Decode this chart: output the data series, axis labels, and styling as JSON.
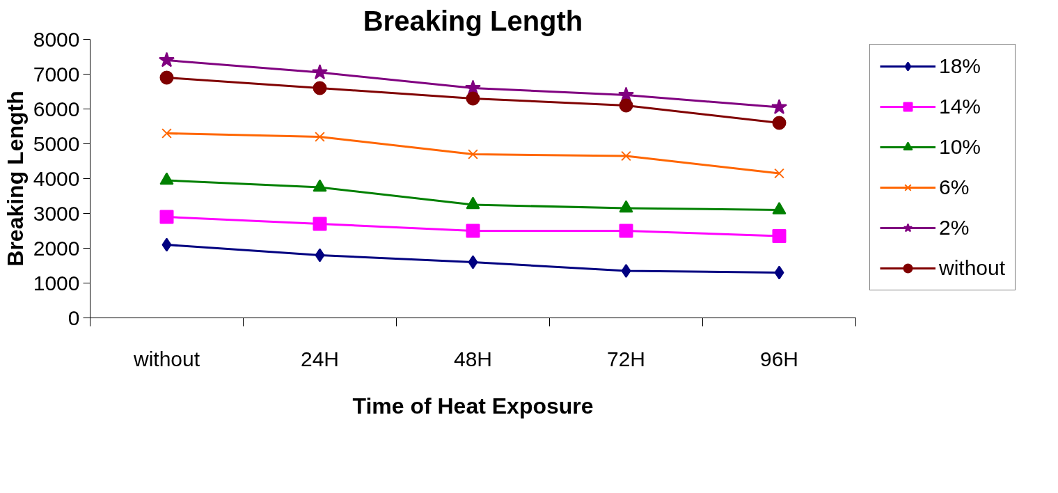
{
  "chart_data": {
    "type": "line",
    "title": "Breaking Length",
    "xlabel": "Time of Heat Exposure",
    "ylabel": "Breaking Length",
    "categories": [
      "without",
      "24H",
      "48H",
      "72H",
      "96H"
    ],
    "series": [
      {
        "name": "18%",
        "color": "#000080",
        "marker": "diamond",
        "values": [
          2100,
          1800,
          1600,
          1350,
          1300
        ]
      },
      {
        "name": "14%",
        "color": "#ff00ff",
        "marker": "square",
        "values": [
          2900,
          2700,
          2500,
          2500,
          2350
        ]
      },
      {
        "name": "10%",
        "color": "#008000",
        "marker": "triangle",
        "values": [
          3950,
          3750,
          3250,
          3150,
          3100
        ]
      },
      {
        "name": "6%",
        "color": "#ff6600",
        "marker": "cross",
        "values": [
          5300,
          5200,
          4700,
          4650,
          4150
        ]
      },
      {
        "name": "2%",
        "color": "#800080",
        "marker": "star",
        "values": [
          7400,
          7050,
          6600,
          6400,
          6050
        ]
      },
      {
        "name": "without",
        "color": "#800000",
        "marker": "circle",
        "values": [
          6900,
          6600,
          6300,
          6100,
          5600
        ]
      }
    ],
    "ylim": [
      0,
      8000
    ],
    "yticks": [
      0,
      1000,
      2000,
      3000,
      4000,
      5000,
      6000,
      7000,
      8000
    ],
    "grid": false,
    "legend": "right",
    "line_style": "solid"
  }
}
